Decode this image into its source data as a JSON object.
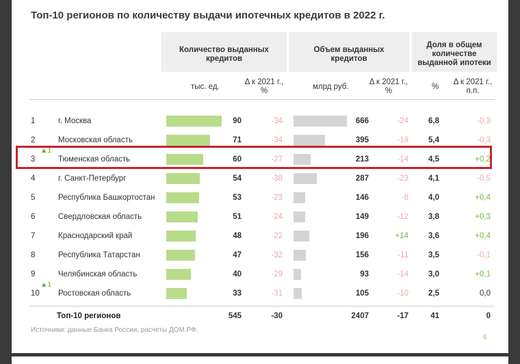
{
  "title": "Топ-10 регионов по количеству выдачи ипотечных кредитов в 2022 г.",
  "headers": {
    "count_group": [
      "Количество выданных",
      "кредитов"
    ],
    "volume_group": [
      "Объем выданных",
      "кредитов"
    ],
    "share_group": [
      "Доля в общем",
      "количестве",
      "выданной ипотеки"
    ],
    "count_unit": "тыс. ед.",
    "count_delta": [
      "Δ к 2021 г.,",
      "%"
    ],
    "volume_unit": "млрд руб.",
    "volume_delta": [
      "Δ к 2021 г.,",
      "%"
    ],
    "share_unit": "%",
    "share_delta": [
      "Δ к 2021 г.,",
      "п.п."
    ]
  },
  "rows": [
    {
      "rank": "1",
      "up": "",
      "region": "г. Москва",
      "count": "90",
      "count_delta": "-34",
      "volume": "666",
      "volume_delta": "-24",
      "share": "6,8",
      "share_delta": "-0,3"
    },
    {
      "rank": "2",
      "up": "",
      "region": "Московская область",
      "count": "71",
      "count_delta": "-34",
      "volume": "395",
      "volume_delta": "-18",
      "share": "5,4",
      "share_delta": "-0,3"
    },
    {
      "rank": "3",
      "up": "▲1",
      "region": "Тюменская область",
      "count": "60",
      "count_delta": "-27",
      "volume": "213",
      "volume_delta": "-14",
      "share": "4,5",
      "share_delta": "+0,2"
    },
    {
      "rank": "4",
      "up": "",
      "region": "г. Санкт-Петербург",
      "count": "54",
      "count_delta": "-38",
      "volume": "287",
      "volume_delta": "-23",
      "share": "4,1",
      "share_delta": "-0,5"
    },
    {
      "rank": "5",
      "up": "",
      "region": "Республика Башкортостан",
      "count": "53",
      "count_delta": "-23",
      "volume": "146",
      "volume_delta": "-8",
      "share": "4,0",
      "share_delta": "+0,4"
    },
    {
      "rank": "6",
      "up": "",
      "region": "Свердловская область",
      "count": "51",
      "count_delta": "-24",
      "volume": "149",
      "volume_delta": "-12",
      "share": "3,8",
      "share_delta": "+0,3"
    },
    {
      "rank": "7",
      "up": "",
      "region": "Краснодарский край",
      "count": "48",
      "count_delta": "-22",
      "volume": "196",
      "volume_delta": "+14",
      "share": "3,6",
      "share_delta": "+0,4"
    },
    {
      "rank": "8",
      "up": "",
      "region": "Республика Татарстан",
      "count": "47",
      "count_delta": "-32",
      "volume": "156",
      "volume_delta": "-11",
      "share": "3,5",
      "share_delta": "-0,1"
    },
    {
      "rank": "9",
      "up": "",
      "region": "Челябинская область",
      "count": "40",
      "count_delta": "-29",
      "volume": "93",
      "volume_delta": "-14",
      "share": "3,0",
      "share_delta": "+0,1"
    },
    {
      "rank": "10",
      "up": "▲1",
      "region": "Ростовская область",
      "count": "33",
      "count_delta": "-31",
      "volume": "105",
      "volume_delta": "-10",
      "share": "2,5",
      "share_delta": "0,0"
    }
  ],
  "total": {
    "label": "Топ-10 регионов",
    "count": "545",
    "count_delta": "-30",
    "volume": "2407",
    "volume_delta": "-17",
    "share": "41",
    "share_delta": "0"
  },
  "source": "Источники: данные Банка России, расчеты ДОМ.РФ.",
  "page_number": "6",
  "colors": {
    "count_bar": "#b8dc8a",
    "volume_bar": "#d4d4d4",
    "negative": "#f0a8a8",
    "positive": "#6dbb3c",
    "highlight": "#c8242c"
  }
}
